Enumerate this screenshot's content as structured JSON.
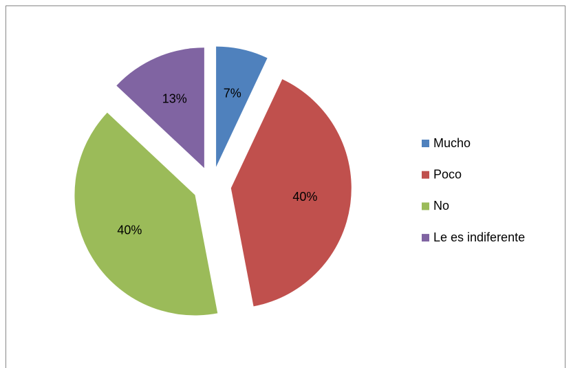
{
  "chart_data": {
    "type": "pie",
    "categories": [
      "Mucho",
      "Poco",
      "No",
      "Le es indiferente"
    ],
    "values": [
      7,
      40,
      40,
      13
    ],
    "value_labels": [
      "7%",
      "40%",
      "40%",
      "13%"
    ],
    "colors": [
      "#4f81bd",
      "#c0504d",
      "#9bbb59",
      "#8064a2"
    ],
    "legend": "right"
  }
}
